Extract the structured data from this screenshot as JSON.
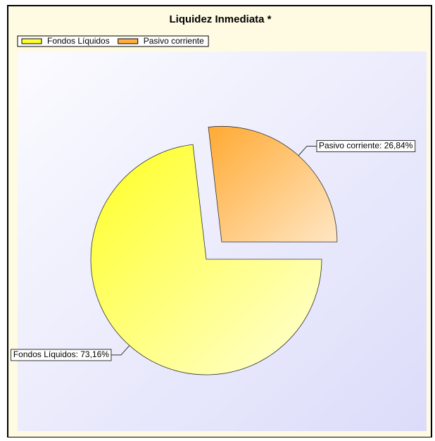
{
  "chart_data": {
    "type": "pie",
    "title": "Liquidez Inmediata *",
    "categories": [
      "Fondos Líquidos",
      "Pasivo corriente"
    ],
    "values": [
      73.16,
      26.84
    ],
    "value_labels": [
      "Fondos Líquidos: 73,16%",
      "Pasivo corriente: 26,84%"
    ],
    "colors": [
      "#ffff33",
      "#ffb040"
    ],
    "explode": [
      false,
      true
    ],
    "legend": "top-left"
  }
}
